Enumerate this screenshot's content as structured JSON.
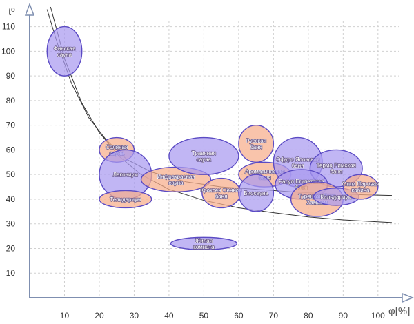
{
  "chart_data": {
    "type": "scatter",
    "title": "",
    "xlabel": "φ[%]",
    "ylabel": "tº",
    "xlim": [
      0,
      104
    ],
    "ylim": [
      0,
      118
    ],
    "grid": true,
    "x_ticks": [
      "10",
      "20",
      "30",
      "40",
      "50",
      "60",
      "70",
      "80",
      "90",
      "100"
    ],
    "y_ticks": [
      "10",
      "20",
      "30",
      "40",
      "50",
      "60",
      "70",
      "80",
      "90",
      "100",
      "110"
    ],
    "colors": {
      "purple_fill": "#a99af0",
      "purple_stroke": "#5b4bc4",
      "orange_fill": "#f6ad8a",
      "orange_stroke": "#d98a6e",
      "axis": "#7f8fb0"
    },
    "boundary_curves": [
      {
        "points": [
          [
            5,
            117
          ],
          [
            8,
            103
          ],
          [
            12,
            87
          ],
          [
            17,
            73
          ],
          [
            22,
            64
          ],
          [
            28,
            56
          ],
          [
            35,
            51
          ],
          [
            45,
            47
          ],
          [
            55,
            45
          ],
          [
            65,
            44
          ],
          [
            75,
            43
          ],
          [
            85,
            42.2
          ],
          [
            95,
            41.8
          ],
          [
            104,
            41.5
          ]
        ]
      },
      {
        "points": [
          [
            6,
            118
          ],
          [
            10,
            97
          ],
          [
            15,
            79
          ],
          [
            20,
            67
          ],
          [
            26,
            57
          ],
          [
            32,
            50
          ],
          [
            40,
            44
          ],
          [
            50,
            39.5
          ],
          [
            60,
            36.5
          ],
          [
            70,
            34.5
          ],
          [
            80,
            32.8
          ],
          [
            90,
            31.6
          ],
          [
            104,
            30.5
          ]
        ]
      }
    ],
    "zones": [
      {
        "name": "Финская сауна",
        "x": 10,
        "y": 100,
        "rx": 5,
        "ry": 10,
        "color": "purple"
      },
      {
        "name": "Соляная сауна",
        "x": 25,
        "y": 60,
        "rx": 5,
        "ry": 5,
        "color": "orange"
      },
      {
        "name": "Лакониум",
        "x": 27.5,
        "y": 50,
        "rx": 7.5,
        "ry": 10,
        "color": "purple"
      },
      {
        "name": "Тепидариум",
        "x": 27.5,
        "y": 40,
        "rx": 7.5,
        "ry": 3.5,
        "color": "orange"
      },
      {
        "name": "Инфракрасная сауна",
        "x": 42,
        "y": 48,
        "rx": 10,
        "ry": 5,
        "color": "orange"
      },
      {
        "name": "Травяная сауна",
        "x": 50,
        "y": 57.5,
        "rx": 10,
        "ry": 7.5,
        "color": "purple"
      },
      {
        "name": "Краксен Сенная баня",
        "x": 55,
        "y": 42.5,
        "rx": 5.5,
        "ry": 6,
        "color": "orange"
      },
      {
        "name": "Жилая комната",
        "x": 50,
        "y": 22,
        "rx": 9.5,
        "ry": 2.5,
        "color": "purple"
      },
      {
        "name": "Русская баня",
        "x": 65,
        "y": 62.5,
        "rx": 5,
        "ry": 7.5,
        "color": "orange"
      },
      {
        "name": "Ароматическая баня",
        "x": 67.5,
        "y": 50,
        "rx": 7.5,
        "ry": 5,
        "color": "orange"
      },
      {
        "name": "Биосауна",
        "x": 65,
        "y": 42.5,
        "rx": 5,
        "ry": 7.5,
        "color": "purple"
      },
      {
        "name": "Офуро Японская баня",
        "x": 77,
        "y": 55,
        "rx": 7,
        "ry": 10,
        "color": "purple"
      },
      {
        "name": "Терма Римская баня",
        "x": 88,
        "y": 52.5,
        "rx": 7.5,
        "ry": 7.5,
        "color": "purple"
      },
      {
        "name": "Расул Египетская баня",
        "x": 78,
        "y": 46,
        "rx": 7.5,
        "ry": 6,
        "color": "purple"
      },
      {
        "name": "Турецкая баня Хаммам",
        "x": 82.5,
        "y": 40,
        "rx": 7.5,
        "ry": 7,
        "color": "orange"
      },
      {
        "name": "Кальдариум",
        "x": 88,
        "y": 41,
        "rx": 6.5,
        "ry": 3.5,
        "color": "purple"
      },
      {
        "name": "Стим Паровая кабина",
        "x": 95,
        "y": 45,
        "rx": 5,
        "ry": 5,
        "color": "orange"
      }
    ]
  }
}
